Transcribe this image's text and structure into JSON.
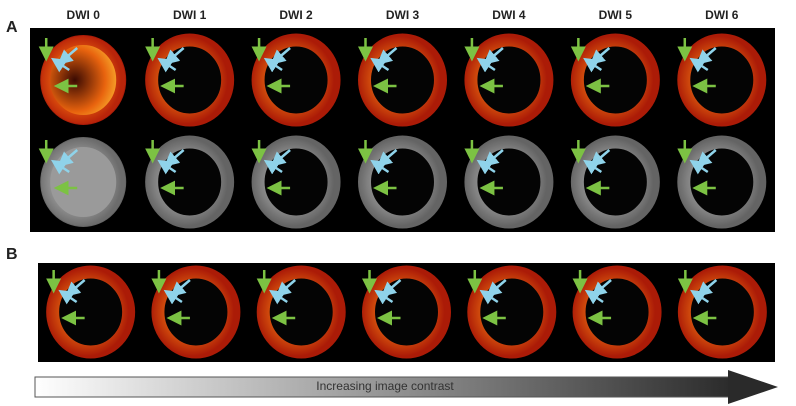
{
  "panels": [
    {
      "label": "A"
    },
    {
      "label": "B"
    }
  ],
  "headers": [
    "DWI 0",
    "DWI 1",
    "DWI 2",
    "DWI 3",
    "DWI 4",
    "DWI 5",
    "DWI 6"
  ],
  "contrast_arrow": {
    "label": "Increasing image contrast"
  }
}
